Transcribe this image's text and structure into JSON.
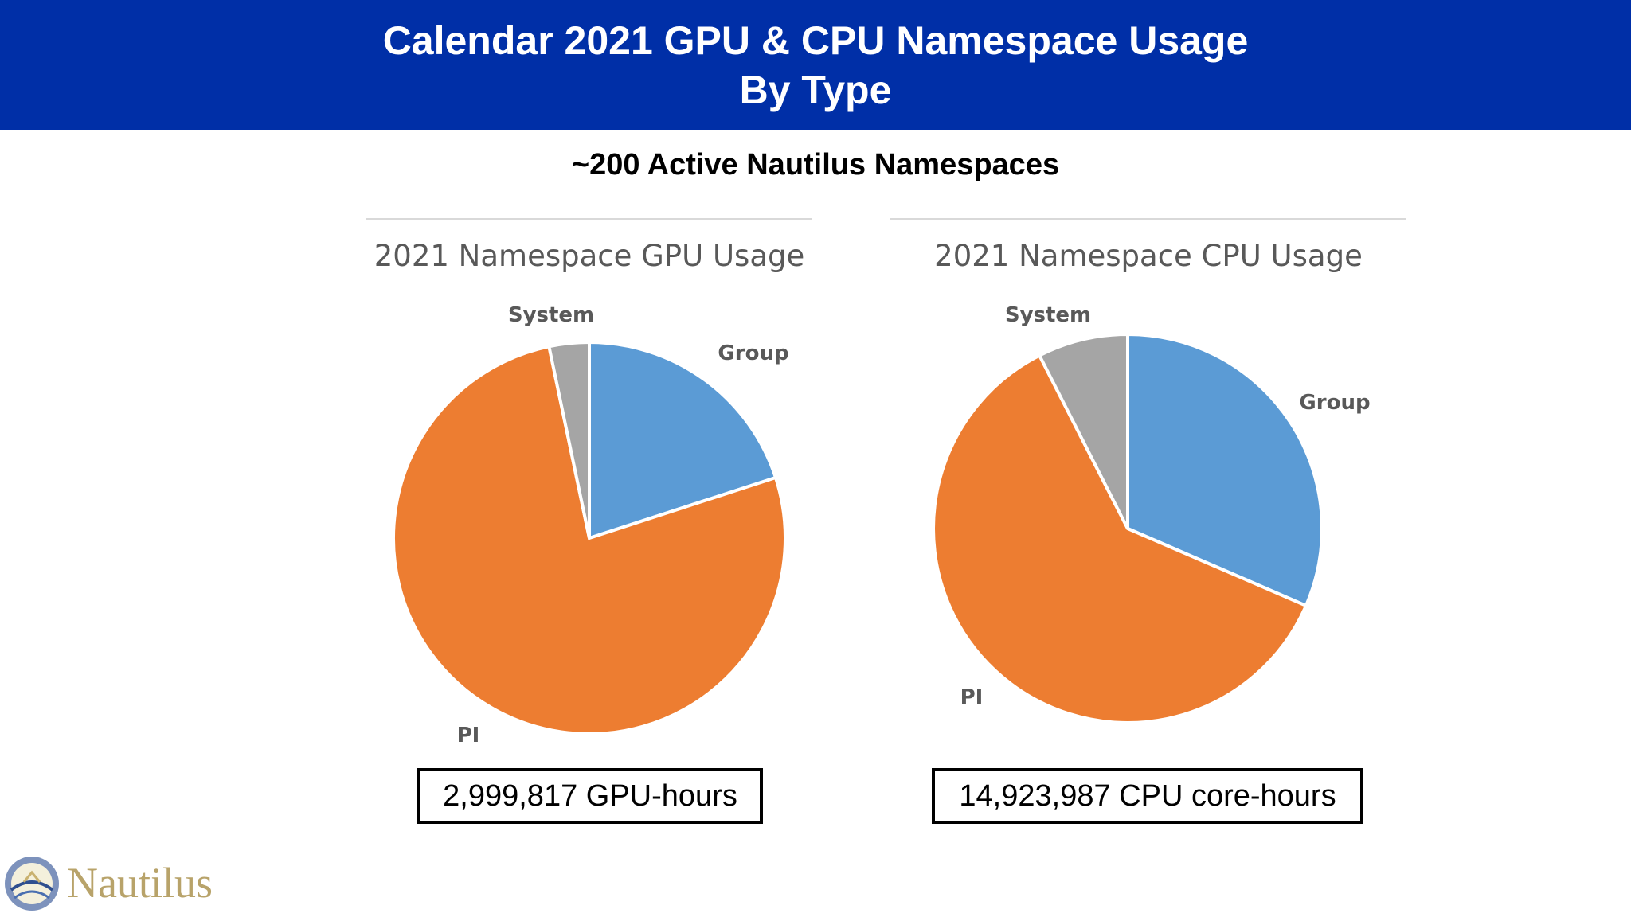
{
  "header": {
    "title_line1": "Calendar 2021 GPU & CPU Namespace Usage",
    "title_line2": "By Type"
  },
  "subtitle": "~200 Active Nautilus Namespaces",
  "logo": {
    "text": "Nautilus",
    "icon": "nautilus-shell-logo"
  },
  "colors": {
    "header_bg": "#002fa7",
    "Group": "#5b9bd5",
    "PI": "#ed7d31",
    "System": "#a5a5a5"
  },
  "chart_data": [
    {
      "type": "pie",
      "title": "2021 Namespace GPU Usage",
      "slices": [
        {
          "label": "Group",
          "value": 20
        },
        {
          "label": "PI",
          "value": 76.7
        },
        {
          "label": "System",
          "value": 3.3
        }
      ],
      "total_label": "2,999,817 GPU-hours"
    },
    {
      "type": "pie",
      "title": "2021 Namespace CPU Usage",
      "slices": [
        {
          "label": "Group",
          "value": 31.5
        },
        {
          "label": "PI",
          "value": 61
        },
        {
          "label": "System",
          "value": 7.5
        }
      ],
      "total_label": "14,923,987 CPU core-hours"
    }
  ]
}
